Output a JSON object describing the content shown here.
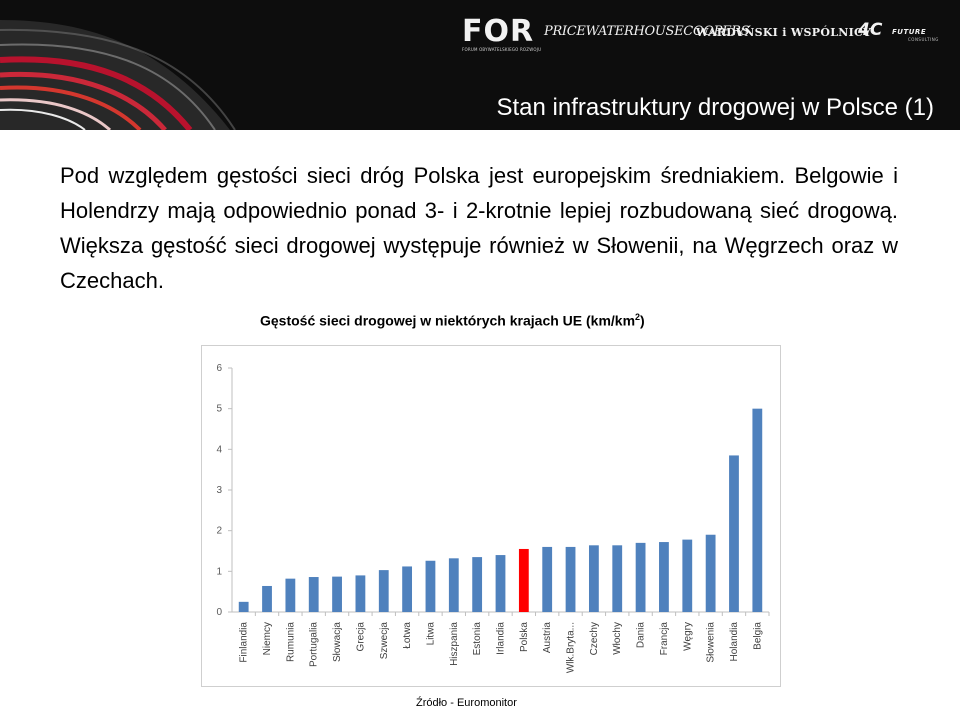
{
  "header": {
    "logos": {
      "for": "FOR",
      "for_sub": "FORUM OBYWATELSKIEGO ROZWOJU",
      "pwc": "PRICEWATERHOUSECOOPERS",
      "ww": "WARDYŃSKI i WSPÓLNICY",
      "fourc": "4C",
      "fourc_sub": "FUTURE",
      "fourc_sub2": "CONSULTING"
    },
    "title": "Stan infrastruktury drogowej w Polsce (1)"
  },
  "intro": "Pod względem gęstości sieci dróg Polska jest europejskim średniakiem. Belgowie i Holendrzy mają odpowiednio ponad 3- i 2-krotnie lepiej rozbudowaną sieć drogową. Większa gęstość sieci drogowej występuje również w Słowenii, na Węgrzech oraz w Czechach.",
  "chart_title": "Gęstość sieci drogowej w niektórych krajach UE (km/km",
  "chart_title_sup": "2",
  "chart_title_end": ")",
  "source": "Źródło - Euromonitor",
  "colors": {
    "bar": "#4f81bd",
    "highlight": "#ff0000",
    "header_bg": "#0d0d0d"
  },
  "chart_data": {
    "type": "bar",
    "title": "Gęstość sieci drogowej w niektórych krajach UE (km/km2)",
    "categories": [
      "Finlandia",
      "Niemcy",
      "Rumunia",
      "Portugalia",
      "Słowacja",
      "Grecja",
      "Szwecja",
      "Łotwa",
      "Litwa",
      "Hiszpania",
      "Estonia",
      "Irlandia",
      "Polska",
      "Austria",
      "Wlk.Bryta...",
      "Czechy",
      "Włochy",
      "Dania",
      "Francja",
      "Węgry",
      "Słowenia",
      "Holandia",
      "Belgia"
    ],
    "values": [
      0.25,
      0.64,
      0.82,
      0.86,
      0.87,
      0.9,
      1.03,
      1.12,
      1.26,
      1.32,
      1.35,
      1.4,
      1.55,
      1.6,
      1.6,
      1.64,
      1.64,
      1.7,
      1.72,
      1.78,
      1.9,
      3.85,
      5.0
    ],
    "highlight_category": "Polska",
    "yticks": [
      "0",
      "1",
      "2",
      "3",
      "4",
      "5",
      "6"
    ],
    "ylim": [
      0,
      6
    ],
    "grid": false,
    "xlabel": "",
    "ylabel": ""
  }
}
